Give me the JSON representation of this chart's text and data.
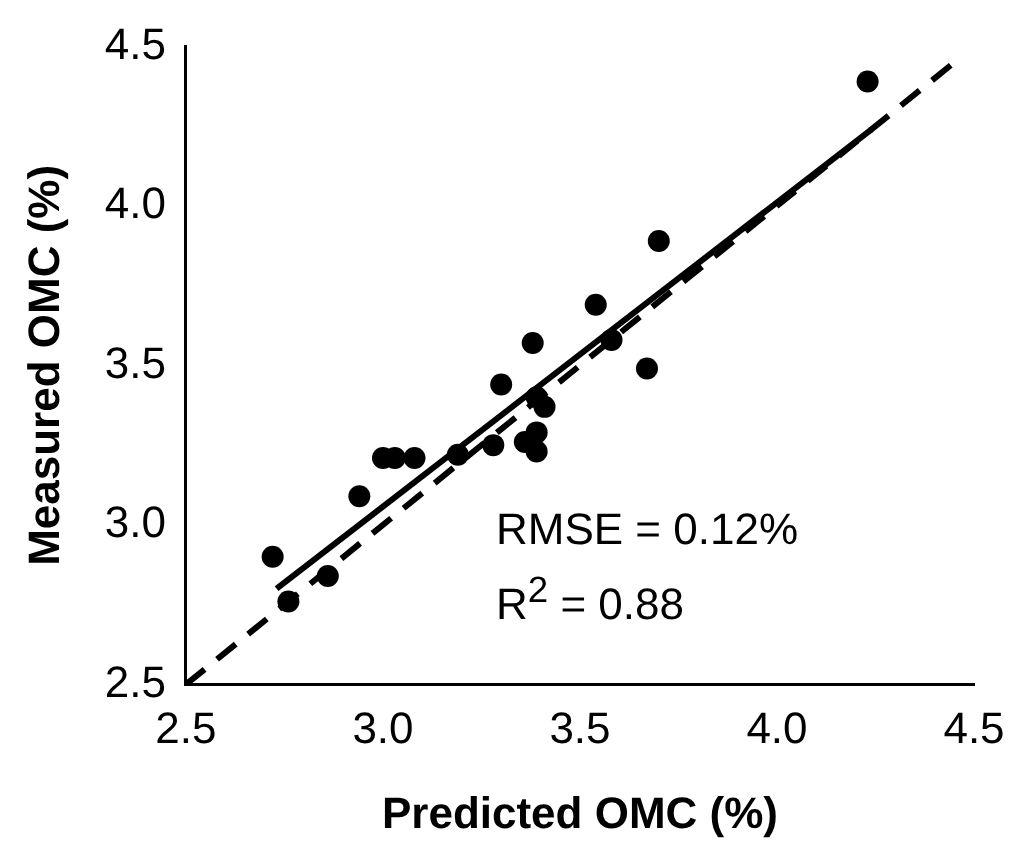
{
  "chart_data": {
    "type": "scatter",
    "xlabel": "Predicted OMC (%)",
    "ylabel": "Measured OMC (%)",
    "xlim": [
      2.5,
      4.5
    ],
    "ylim": [
      2.5,
      4.5
    ],
    "xticks": [
      {
        "value": 2.5,
        "label": "2.5"
      },
      {
        "value": 3,
        "label": "3.0"
      },
      {
        "value": 3.5,
        "label": "3.5"
      },
      {
        "value": 4,
        "label": "4.0"
      },
      {
        "value": 4.5,
        "label": "4.5"
      }
    ],
    "yticks": [
      {
        "value": 2.5,
        "label": "2.5"
      },
      {
        "value": 3,
        "label": "3.0"
      },
      {
        "value": 3.5,
        "label": "3.5"
      },
      {
        "value": 4,
        "label": "4.0"
      },
      {
        "value": 4.5,
        "label": "4.5"
      }
    ],
    "grid": false,
    "legend": false,
    "marker": "circle",
    "series": [
      {
        "color": "#000000",
        "x": [
          2.72,
          2.76,
          2.86,
          2.94,
          3.0,
          3.03,
          3.08,
          3.17,
          3.19,
          3.28,
          3.3,
          3.36,
          3.39,
          3.39,
          3.38,
          3.41,
          3.39,
          3.54,
          3.58,
          3.67,
          3.7,
          4.23
        ],
        "values": [
          2.9,
          2.76,
          2.84,
          3.09,
          3.21,
          3.21,
          3.21,
          null,
          3.22,
          3.25,
          3.44,
          3.26,
          3.23,
          3.29,
          3.57,
          3.37,
          3.4,
          3.69,
          3.58,
          3.49,
          3.89,
          4.39
        ]
      },
      {
        "type": "line",
        "color": "#000000",
        "line_style": "solid",
        "marker": "none",
        "x": [
          2.73,
          4.24
        ],
        "values": [
          2.8,
          4.24
        ]
      },
      {
        "type": "line",
        "color": "#000000",
        "line_style": "dashed",
        "marker": "none",
        "x": [
          2.5,
          4.45
        ],
        "values": [
          2.5,
          4.45
        ]
      }
    ],
    "annotations": [
      "RMSE = 0.12%",
      "R$^{2}$ = 0.88"
    ]
  }
}
